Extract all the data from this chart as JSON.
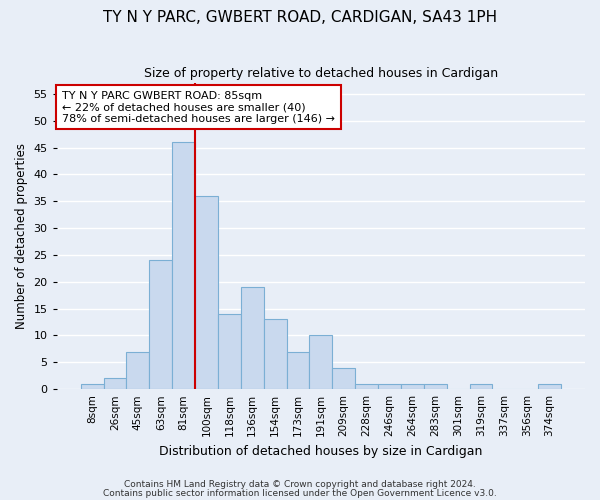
{
  "title": "TY N Y PARC, GWBERT ROAD, CARDIGAN, SA43 1PH",
  "subtitle": "Size of property relative to detached houses in Cardigan",
  "xlabel": "Distribution of detached houses by size in Cardigan",
  "ylabel": "Number of detached properties",
  "bar_values": [
    1,
    2,
    7,
    24,
    46,
    36,
    14,
    19,
    13,
    7,
    10,
    4,
    1,
    1,
    1,
    1,
    0,
    1,
    0,
    0,
    1
  ],
  "bar_labels": [
    "8sqm",
    "26sqm",
    "45sqm",
    "63sqm",
    "81sqm",
    "100sqm",
    "118sqm",
    "136sqm",
    "154sqm",
    "173sqm",
    "191sqm",
    "209sqm",
    "228sqm",
    "246sqm",
    "264sqm",
    "283sqm",
    "301sqm",
    "319sqm",
    "337sqm",
    "356sqm",
    "374sqm"
  ],
  "bar_color": "#c9d9ee",
  "bar_edge_color": "#7bafd4",
  "ylim": [
    0,
    57
  ],
  "yticks": [
    0,
    5,
    10,
    15,
    20,
    25,
    30,
    35,
    40,
    45,
    50,
    55
  ],
  "vline_x": 4.5,
  "vline_color": "#cc0000",
  "annotation_text": "TY N Y PARC GWBERT ROAD: 85sqm\n← 22% of detached houses are smaller (40)\n78% of semi-detached houses are larger (146) →",
  "annotation_box_facecolor": "#ffffff",
  "annotation_box_edgecolor": "#cc0000",
  "footnote1": "Contains HM Land Registry data © Crown copyright and database right 2024.",
  "footnote2": "Contains public sector information licensed under the Open Government Licence v3.0.",
  "background_color": "#e8eef7",
  "grid_color": "#ffffff",
  "title_fontsize": 11,
  "subtitle_fontsize": 9
}
